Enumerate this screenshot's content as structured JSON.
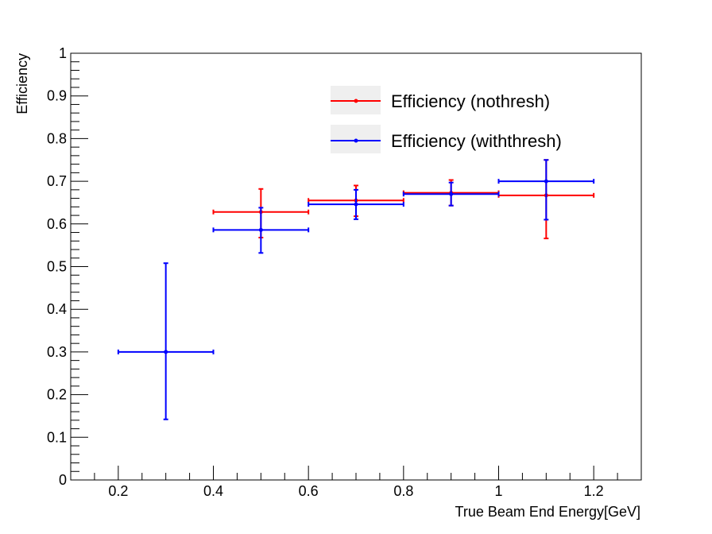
{
  "chart_data": {
    "type": "scatter",
    "title": "",
    "xlabel": "True Beam End Energy[GeV]",
    "ylabel": "Efficiency",
    "xlim": [
      0.1,
      1.3
    ],
    "ylim": [
      0,
      1
    ],
    "x_ticks": [
      "0.2",
      "0.4",
      "0.6",
      "0.8",
      "1",
      "1.2"
    ],
    "y_ticks": [
      "0",
      "0.1",
      "0.2",
      "0.3",
      "0.4",
      "0.5",
      "0.6",
      "0.7",
      "0.8",
      "0.9",
      "1"
    ],
    "grid": false,
    "legend_placement": "top-right",
    "series": [
      {
        "name": "Efficiency (nothresh)",
        "color": "#ff0000",
        "points": [
          {
            "x": 0.5,
            "xlow": 0.4,
            "xhigh": 0.6,
            "y": 0.628,
            "ylow": 0.568,
            "yhigh": 0.682
          },
          {
            "x": 0.7,
            "xlow": 0.6,
            "xhigh": 0.8,
            "y": 0.655,
            "ylow": 0.618,
            "yhigh": 0.69
          },
          {
            "x": 0.9,
            "xlow": 0.8,
            "xhigh": 1.0,
            "y": 0.673,
            "ylow": 0.643,
            "yhigh": 0.703
          },
          {
            "x": 1.1,
            "xlow": 1.0,
            "xhigh": 1.2,
            "y": 0.667,
            "ylow": 0.566,
            "yhigh": 0.75
          }
        ]
      },
      {
        "name": "Efficiency (withthresh)",
        "color": "#0000ff",
        "points": [
          {
            "x": 0.3,
            "xlow": 0.2,
            "xhigh": 0.4,
            "y": 0.3,
            "ylow": 0.142,
            "yhigh": 0.508
          },
          {
            "x": 0.5,
            "xlow": 0.4,
            "xhigh": 0.6,
            "y": 0.586,
            "ylow": 0.532,
            "yhigh": 0.638
          },
          {
            "x": 0.7,
            "xlow": 0.6,
            "xhigh": 0.8,
            "y": 0.646,
            "ylow": 0.611,
            "yhigh": 0.68
          },
          {
            "x": 0.9,
            "xlow": 0.8,
            "xhigh": 1.0,
            "y": 0.67,
            "ylow": 0.643,
            "yhigh": 0.697
          },
          {
            "x": 1.1,
            "xlow": 1.0,
            "xhigh": 1.2,
            "y": 0.7,
            "ylow": 0.61,
            "yhigh": 0.75
          }
        ]
      }
    ]
  }
}
